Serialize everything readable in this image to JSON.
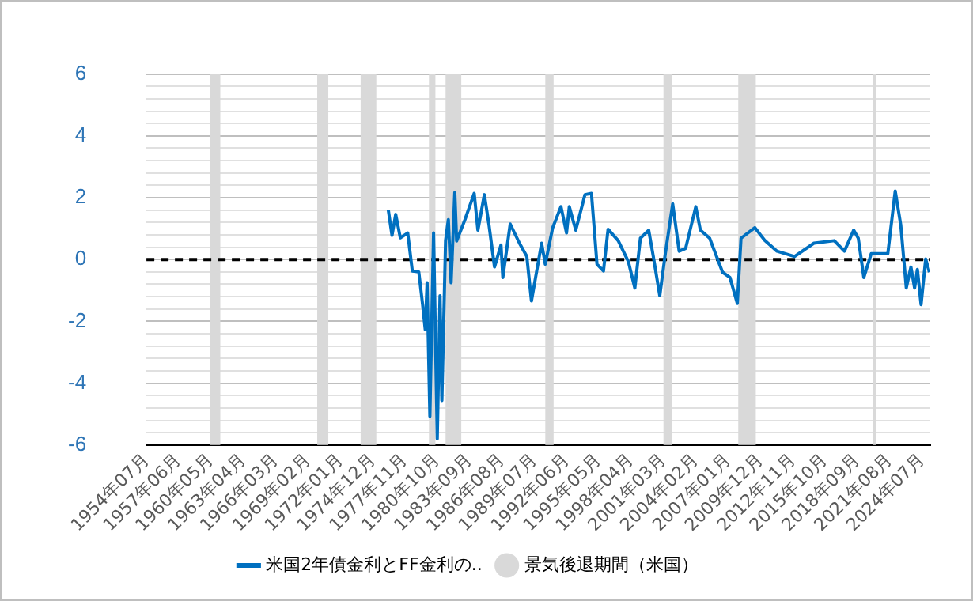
{
  "chart_data": {
    "type": "line",
    "series": [
      {
        "name": "米国2年債金利とFF金利の..",
        "color": "#0070c0",
        "x": [
          "1976-05",
          "1976-09",
          "1977-01",
          "1977-06",
          "1978-02",
          "1978-07",
          "1979-02",
          "1979-06",
          "1979-09",
          "1979-11",
          "1980-02",
          "1980-06",
          "1980-10",
          "1981-01",
          "1981-03",
          "1981-07",
          "1981-10",
          "1982-01",
          "1982-05",
          "1982-07",
          "1983-04",
          "1984-02",
          "1984-06",
          "1985-01",
          "1985-06",
          "1985-12",
          "1986-07",
          "1986-09",
          "1987-05",
          "1988-03",
          "1988-11",
          "1989-04",
          "1990-03",
          "1990-07",
          "1991-03",
          "1991-12",
          "1992-06",
          "1992-09",
          "1993-04",
          "1994-02",
          "1994-09",
          "1995-03",
          "1995-10",
          "1996-03",
          "1997-02",
          "1998-01",
          "1998-08",
          "1999-02",
          "1999-11",
          "2000-04",
          "2000-11",
          "2001-05",
          "2002-01",
          "2002-08",
          "2003-03",
          "2004-02",
          "2004-07",
          "2005-05",
          "2006-07",
          "2007-03",
          "2007-11",
          "2008-03",
          "2009-06",
          "2010-05",
          "2011-06",
          "2013-01",
          "2014-10",
          "2016-08",
          "2017-07",
          "2018-05",
          "2018-10",
          "2019-04",
          "2019-12",
          "2021-06",
          "2022-02",
          "2022-08",
          "2023-02",
          "2023-07",
          "2023-11",
          "2024-02",
          "2024-06",
          "2024-11",
          "2025-03"
        ],
        "values": [
          1.6,
          0.78,
          1.46,
          0.7,
          0.86,
          -0.37,
          -0.4,
          -1.42,
          -2.27,
          -0.75,
          -5.07,
          0.86,
          -5.8,
          -1.17,
          -4.56,
          0.61,
          1.29,
          -0.75,
          2.17,
          0.6,
          1.29,
          2.14,
          0.95,
          2.1,
          1.12,
          -0.24,
          0.47,
          -0.58,
          1.15,
          0.53,
          0.1,
          -1.34,
          0.53,
          -0.15,
          1.03,
          1.71,
          0.86,
          1.71,
          0.95,
          2.1,
          2.14,
          -0.15,
          -0.37,
          0.98,
          0.61,
          -0.07,
          -0.92,
          0.69,
          0.95,
          0.1,
          -1.17,
          0.19,
          1.8,
          0.27,
          0.36,
          1.71,
          0.95,
          0.69,
          -0.41,
          -0.58,
          -1.42,
          0.69,
          1.03,
          0.61,
          0.27,
          0.1,
          0.53,
          0.61,
          0.27,
          0.95,
          0.69,
          -0.58,
          0.19,
          0.19,
          2.22,
          1.12,
          -0.92,
          -0.24,
          -0.92,
          -0.32,
          -1.46,
          0.02,
          -0.41
        ]
      }
    ],
    "xlim": [
      "1954-07",
      "2025-04"
    ],
    "xticks": [
      {
        "value": "1954-07",
        "label": "1954年07月"
      },
      {
        "value": "1957-06",
        "label": "1957年06月"
      },
      {
        "value": "1960-05",
        "label": "1960年05月"
      },
      {
        "value": "1963-04",
        "label": "1963年04月"
      },
      {
        "value": "1966-03",
        "label": "1966年03月"
      },
      {
        "value": "1969-02",
        "label": "1969年02月"
      },
      {
        "value": "1972-01",
        "label": "1972年01月"
      },
      {
        "value": "1974-12",
        "label": "1974年12月"
      },
      {
        "value": "1977-11",
        "label": "1977年11月"
      },
      {
        "value": "1980-10",
        "label": "1980年10月"
      },
      {
        "value": "1983-09",
        "label": "1983年09月"
      },
      {
        "value": "1986-08",
        "label": "1986年08月"
      },
      {
        "value": "1989-07",
        "label": "1989年07月"
      },
      {
        "value": "1992-06",
        "label": "1992年06月"
      },
      {
        "value": "1995-05",
        "label": "1995年05月"
      },
      {
        "value": "1998-04",
        "label": "1998年04月"
      },
      {
        "value": "2001-03",
        "label": "2001年03月"
      },
      {
        "value": "2004-02",
        "label": "2004年02月"
      },
      {
        "value": "2007-01",
        "label": "2007年01月"
      },
      {
        "value": "2009-12",
        "label": "2009年12月"
      },
      {
        "value": "2012-11",
        "label": "2012年11月"
      },
      {
        "value": "2015-10",
        "label": "2015年10月"
      },
      {
        "value": "2018-09",
        "label": "2018年09月"
      },
      {
        "value": "2021-08",
        "label": "2021年08月"
      },
      {
        "value": "2024-07",
        "label": "2024年07月"
      }
    ],
    "ylim": [
      -6,
      6
    ],
    "yticks": [
      -6,
      {
        "value": -5.6,
        "label": null
      },
      {
        "value": -5.2,
        "label": null
      },
      {
        "value": -4.8,
        "label": null
      },
      {
        "value": -4.4,
        "label": null
      },
      -4,
      {
        "value": -3.6,
        "label": null
      },
      {
        "value": -3.2,
        "label": null
      },
      {
        "value": -2.8,
        "label": null
      },
      {
        "value": -2.4,
        "label": null
      },
      -2,
      {
        "value": -1.6,
        "label": null
      },
      {
        "value": -1.2,
        "label": null
      },
      {
        "value": -0.8,
        "label": null
      },
      {
        "value": -0.4,
        "label": null
      },
      0,
      {
        "value": 0.4,
        "label": null
      },
      {
        "value": 0.8,
        "label": null
      },
      {
        "value": 1.2,
        "label": null
      },
      {
        "value": 1.6,
        "label": null
      },
      2,
      {
        "value": 2.4,
        "label": null
      },
      {
        "value": 2.8,
        "label": null
      },
      {
        "value": 3.2,
        "label": null
      },
      {
        "value": 3.6,
        "label": null
      },
      4,
      {
        "value": 4.4,
        "label": null
      },
      {
        "value": 4.8,
        "label": null
      },
      {
        "value": 5.2,
        "label": null
      },
      {
        "value": 5.6,
        "label": null
      },
      6
    ],
    "bands": [
      {
        "axis": "x",
        "from": "1960-04",
        "to": "1961-02",
        "color": "#d9d9d9",
        "label": "景気後退期間（米国）"
      },
      {
        "axis": "x",
        "from": "1969-12",
        "to": "1970-11",
        "color": "#d9d9d9"
      },
      {
        "axis": "x",
        "from": "1973-11",
        "to": "1975-03",
        "color": "#d9d9d9"
      },
      {
        "axis": "x",
        "from": "1980-01",
        "to": "1980-07",
        "color": "#d9d9d9"
      },
      {
        "axis": "x",
        "from": "1981-07",
        "to": "1982-11",
        "color": "#d9d9d9"
      },
      {
        "axis": "x",
        "from": "1990-07",
        "to": "1991-03",
        "color": "#d9d9d9"
      },
      {
        "axis": "x",
        "from": "2001-03",
        "to": "2001-11",
        "color": "#d9d9d9"
      },
      {
        "axis": "x",
        "from": "2007-12",
        "to": "2009-06",
        "color": "#d9d9d9"
      },
      {
        "axis": "x",
        "from": "2020-02",
        "to": "2020-04",
        "color": "#d9d9d9"
      }
    ],
    "ref_lines": [
      {
        "axis": "y",
        "value": 0,
        "color": "#000000",
        "line_style": "dashed"
      }
    ],
    "grid": "y",
    "legend": "bottom",
    "marker": "none",
    "line_style": "solid"
  }
}
